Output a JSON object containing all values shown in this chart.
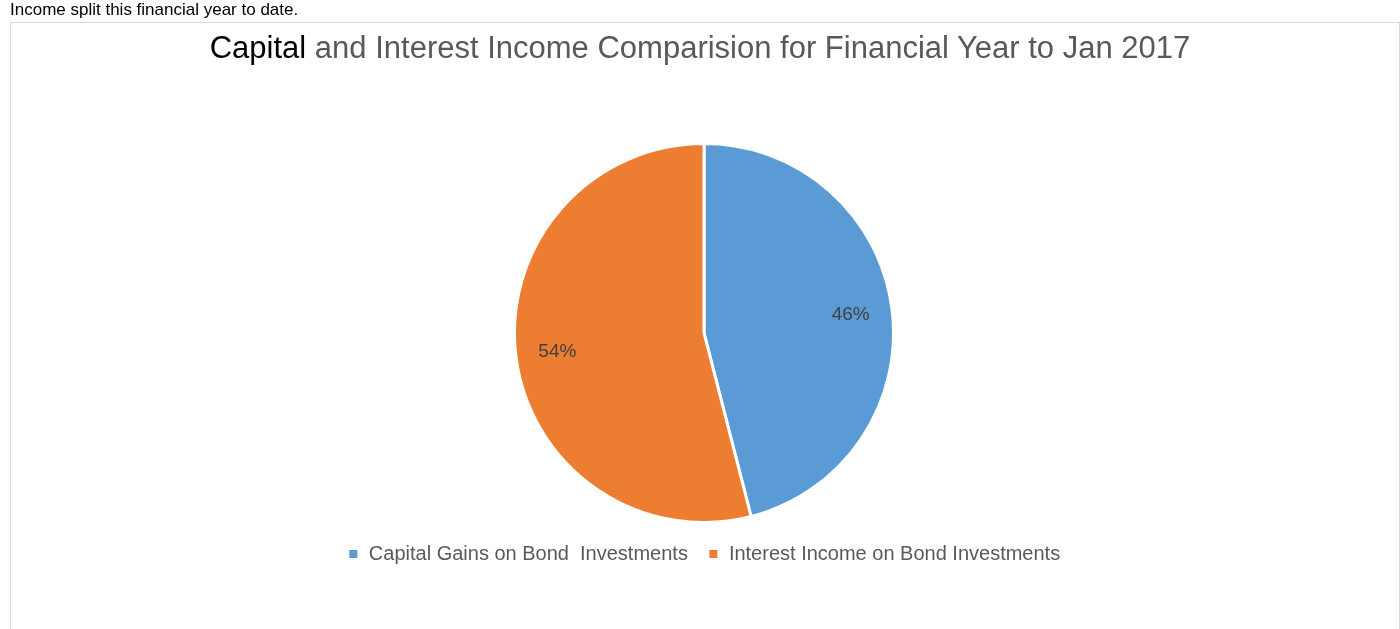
{
  "chart_data": {
    "type": "pie",
    "title": "Capital and Interest Income Comparision for Financial Year to Jan 2017",
    "annotations": [
      "Income split this financial year to date."
    ],
    "categories": [
      "Capital Gains on Bond  Investments",
      "Interest Income on Bond Investments"
    ],
    "values": [
      46,
      54
    ],
    "colors": [
      "#5b9bd5",
      "#ed7d31"
    ],
    "value_labels": [
      "46%",
      "54%"
    ],
    "legend": "bottom"
  }
}
